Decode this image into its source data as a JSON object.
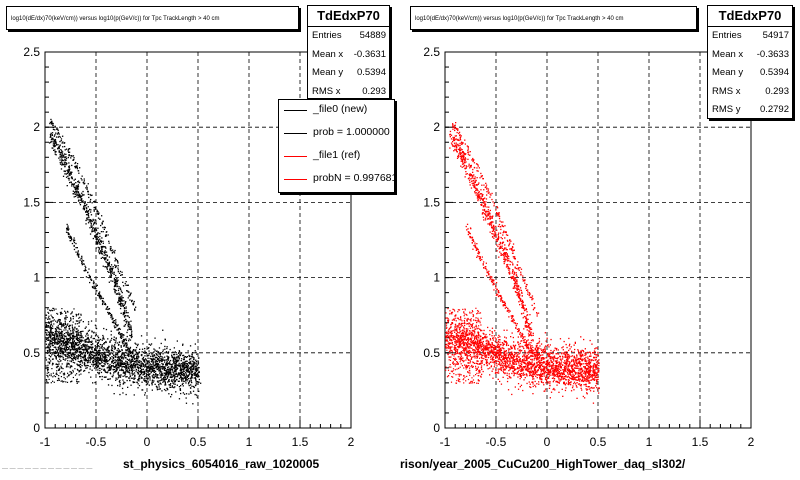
{
  "colors": {
    "file0": "#000000",
    "file1": "#ff0000"
  },
  "left_pad": {
    "title": "log10(dE/dx)70(keV/cm)) versus log10(p(GeV/c)) for Tpc TrackLength > 40 cm",
    "stats_title": "TdEdxP70",
    "stats": [
      {
        "k": "Entries",
        "v": "54889"
      },
      {
        "k": "Mean x",
        "v": "-0.3631"
      },
      {
        "k": "Mean y",
        "v": "0.5394"
      },
      {
        "k": "RMS x",
        "v": "0.293"
      }
    ],
    "x_title": "st_physics_6054016_raw_1020005"
  },
  "right_pad": {
    "title": "log10(dE/dx)70(keV/cm)) versus log10(p(GeV/c)) for Tpc TrackLength > 40 cm",
    "stats_title": "TdEdxP70",
    "stats": [
      {
        "k": "Entries",
        "v": "54917"
      },
      {
        "k": "Mean x",
        "v": "-0.3633"
      },
      {
        "k": "Mean y",
        "v": "0.5394"
      },
      {
        "k": "RMS x",
        "v": "0.293"
      },
      {
        "k": "RMS y",
        "v": "0.2792"
      }
    ],
    "x_title": "rison/year_2005_CuCu200_HighTower_daq_sl302/"
  },
  "legend": [
    {
      "label": "_file0 (new)",
      "color": "#000000"
    },
    {
      "label": "prob = 1.000000",
      "color": "#000000"
    },
    {
      "label": "_file1 (ref)",
      "color": "#ff0000"
    },
    {
      "label": "probN = 0.997681",
      "color": "#ff0000"
    }
  ],
  "footer": "— — — — —  —  — — — — — —",
  "chart_data": [
    {
      "type": "scatter",
      "title": "log10(dE/dx)70(keV/cm)) versus log10(p(GeV/c)) for Tpc TrackLength > 40 cm",
      "xlabel": "st_physics_6054016_raw_1020005",
      "ylabel": "",
      "xlim": [
        -1,
        2
      ],
      "ylim": [
        0,
        2.5
      ],
      "xticks": [
        "-1",
        "-0.5",
        "0",
        "0.5",
        "1",
        "1.5",
        "2"
      ],
      "yticks": [
        "0",
        "0.5",
        "1",
        "1.5",
        "2",
        "2.5"
      ],
      "grid": true,
      "color": "#000000",
      "bands": [
        {
          "x": [
            -1.0,
            -0.7,
            -0.4,
            -0.1,
            0.2,
            0.5
          ],
          "y": [
            0.6,
            0.55,
            0.47,
            0.42,
            0.4,
            0.38
          ],
          "spread": 0.07,
          "weight": 60
        },
        {
          "x": [
            -0.95,
            -0.8,
            -0.6,
            -0.45,
            -0.3,
            -0.15
          ],
          "y": [
            1.95,
            1.75,
            1.45,
            1.2,
            0.95,
            0.6
          ],
          "spread": 0.035,
          "weight": 16
        },
        {
          "x": [
            -0.95,
            -0.7,
            -0.5,
            -0.3,
            -0.1
          ],
          "y": [
            2.05,
            1.75,
            1.45,
            1.1,
            0.75
          ],
          "spread": 0.012,
          "weight": 5
        },
        {
          "x": [
            -0.8,
            -0.6,
            -0.4,
            -0.2,
            -0.1
          ],
          "y": [
            1.35,
            1.05,
            0.8,
            0.55,
            0.48
          ],
          "spread": 0.012,
          "weight": 6
        }
      ]
    },
    {
      "type": "scatter",
      "title": "log10(dE/dx)70(keV/cm)) versus log10(p(GeV/c)) for Tpc TrackLength > 40 cm",
      "xlabel": "rison/year_2005_CuCu200_HighTower_daq_sl302/",
      "ylabel": "",
      "xlim": [
        -1,
        2
      ],
      "ylim": [
        0,
        2.5
      ],
      "xticks": [
        "-1",
        "-0.5",
        "0",
        "0.5",
        "1",
        "1.5",
        "2"
      ],
      "yticks": [
        "0",
        "0.5",
        "1",
        "1.5",
        "2",
        "2.5"
      ],
      "grid": true,
      "color": "#ff0000",
      "bands": [
        {
          "x": [
            -1.0,
            -0.7,
            -0.4,
            -0.1,
            0.2,
            0.5
          ],
          "y": [
            0.6,
            0.55,
            0.47,
            0.42,
            0.4,
            0.38
          ],
          "spread": 0.07,
          "weight": 60
        },
        {
          "x": [
            -0.95,
            -0.8,
            -0.6,
            -0.45,
            -0.3,
            -0.15
          ],
          "y": [
            1.95,
            1.75,
            1.45,
            1.2,
            0.95,
            0.6
          ],
          "spread": 0.035,
          "weight": 16
        },
        {
          "x": [
            -0.95,
            -0.7,
            -0.5,
            -0.3,
            -0.1
          ],
          "y": [
            2.05,
            1.75,
            1.45,
            1.1,
            0.75
          ],
          "spread": 0.012,
          "weight": 5
        },
        {
          "x": [
            -0.8,
            -0.6,
            -0.4,
            -0.2,
            -0.1
          ],
          "y": [
            1.35,
            1.05,
            0.8,
            0.55,
            0.48
          ],
          "spread": 0.012,
          "weight": 6
        }
      ]
    }
  ]
}
